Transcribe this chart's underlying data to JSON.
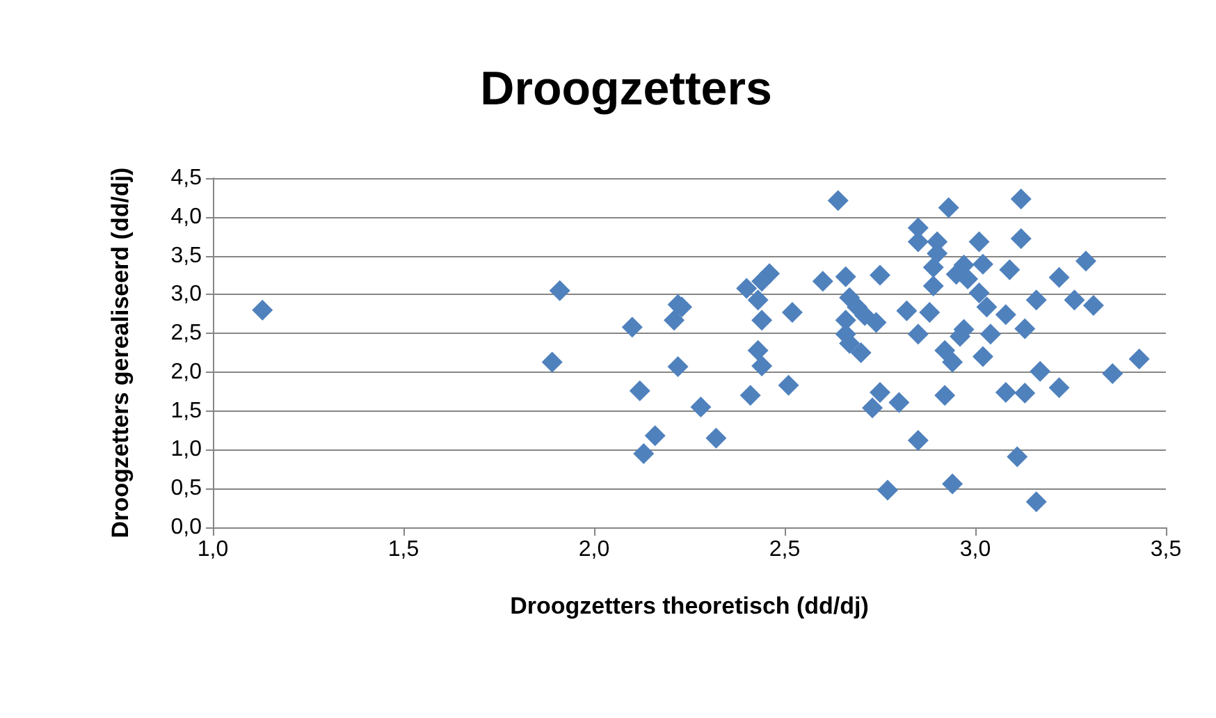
{
  "chart_data": {
    "type": "scatter",
    "title": "Droogzetters",
    "xlabel": "Droogzetters theoretisch (dd/dj)",
    "ylabel": "Droogzetters gerealiseerd (dd/dj)",
    "xlim": [
      1.0,
      3.5
    ],
    "xticks": [
      {
        "value": 1.0,
        "label": "1,0"
      },
      {
        "value": 1.5,
        "label": "1,5"
      },
      {
        "value": 2.0,
        "label": "2,0"
      },
      {
        "value": 2.5,
        "label": "2,5"
      },
      {
        "value": 3.0,
        "label": "3,0"
      },
      {
        "value": 3.5,
        "label": "3,5"
      }
    ],
    "ylim": [
      0.0,
      4.5
    ],
    "yticks": [
      {
        "value": 0.0,
        "label": "0,0"
      },
      {
        "value": 0.5,
        "label": "0,5"
      },
      {
        "value": 1.0,
        "label": "1,0"
      },
      {
        "value": 1.5,
        "label": "1,5"
      },
      {
        "value": 2.0,
        "label": "2,0"
      },
      {
        "value": 2.5,
        "label": "2,5"
      },
      {
        "value": 3.0,
        "label": "3,0"
      },
      {
        "value": 3.5,
        "label": "3,5"
      },
      {
        "value": 4.0,
        "label": "4,0"
      },
      {
        "value": 4.5,
        "label": "4,5"
      }
    ],
    "grid": "y",
    "marker": "diamond",
    "series": [
      {
        "color": "#4f81bd",
        "x": [
          1.13,
          1.91,
          1.89,
          2.1,
          2.12,
          2.13,
          2.16,
          2.21,
          2.22,
          2.23,
          2.22,
          2.28,
          2.32,
          2.4,
          2.43,
          2.44,
          2.46,
          2.44,
          2.43,
          2.44,
          2.41,
          2.52,
          2.51,
          2.6,
          2.64,
          2.66,
          2.67,
          2.69,
          2.66,
          2.66,
          2.67,
          2.7,
          2.71,
          2.74,
          2.75,
          2.75,
          2.73,
          2.8,
          2.77,
          2.82,
          2.85,
          2.85,
          2.85,
          2.85,
          2.88,
          2.9,
          2.9,
          2.89,
          2.89,
          2.93,
          2.92,
          2.94,
          2.92,
          2.94,
          2.95,
          2.97,
          2.98,
          2.96,
          2.97,
          3.01,
          3.02,
          3.01,
          3.03,
          3.04,
          3.02,
          3.08,
          3.09,
          3.08,
          3.12,
          3.12,
          3.13,
          3.13,
          3.11,
          3.16,
          3.16,
          3.17,
          3.22,
          3.22,
          3.26,
          3.29,
          3.31,
          3.36,
          3.43
        ],
        "values": [
          2.8,
          3.05,
          2.13,
          2.58,
          1.76,
          0.95,
          1.18,
          2.67,
          2.87,
          2.84,
          2.07,
          1.55,
          1.15,
          3.08,
          2.93,
          2.67,
          3.27,
          3.17,
          2.28,
          2.08,
          1.7,
          2.77,
          1.83,
          3.17,
          4.21,
          3.23,
          2.96,
          2.84,
          2.67,
          2.49,
          2.37,
          2.25,
          2.73,
          2.64,
          3.25,
          1.74,
          1.54,
          1.61,
          0.48,
          2.79,
          2.49,
          1.12,
          3.86,
          3.68,
          2.77,
          3.68,
          3.53,
          3.35,
          3.11,
          4.12,
          2.28,
          2.13,
          1.7,
          0.56,
          3.26,
          3.38,
          3.2,
          2.46,
          2.55,
          3.68,
          3.39,
          3.02,
          2.84,
          2.49,
          2.2,
          2.74,
          3.32,
          1.74,
          3.72,
          4.23,
          2.56,
          1.73,
          0.91,
          0.33,
          2.93,
          2.01,
          3.22,
          1.8,
          2.93,
          3.43,
          2.86,
          1.98,
          2.17
        ]
      }
    ]
  }
}
